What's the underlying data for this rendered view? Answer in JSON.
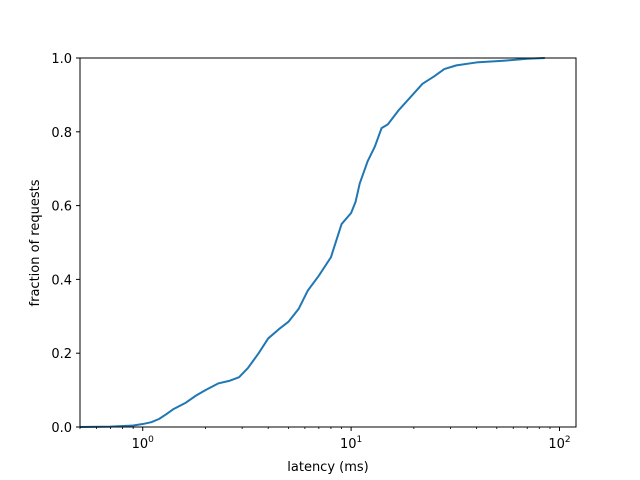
{
  "chart_data": {
    "type": "line",
    "title": "",
    "xlabel": "latency (ms)",
    "ylabel": "fraction of requests",
    "xscale": "log",
    "xlim": [
      0.5,
      120
    ],
    "ylim": [
      0.0,
      1.0
    ],
    "grid": false,
    "legend": "none",
    "line_color": "#1f77b4",
    "xticks": [
      {
        "value": 1,
        "base": "10",
        "exp": "0"
      },
      {
        "value": 10,
        "base": "10",
        "exp": "1"
      },
      {
        "value": 100,
        "base": "10",
        "exp": "2"
      }
    ],
    "yticks": [
      {
        "value": 0.0,
        "label": "0.0"
      },
      {
        "value": 0.2,
        "label": "0.2"
      },
      {
        "value": 0.4,
        "label": "0.4"
      },
      {
        "value": 0.6,
        "label": "0.6"
      },
      {
        "value": 0.8,
        "label": "0.8"
      },
      {
        "value": 1.0,
        "label": "1.0"
      }
    ],
    "series": [
      {
        "x": [
          0.5,
          0.7,
          0.9,
          1.0,
          1.1,
          1.2,
          1.3,
          1.4,
          1.6,
          1.8,
          2.0,
          2.3,
          2.6,
          2.9,
          3.2,
          3.6,
          4.0,
          4.5,
          5.0,
          5.6,
          6.2,
          7.0,
          8.0,
          9.0,
          10.0,
          10.5,
          11.0,
          12.0,
          13.0,
          14.0,
          15.0,
          17.0,
          19.0,
          22.0,
          25.0,
          28.0,
          32.0,
          40.0,
          55.0,
          70.0,
          85.0
        ],
        "y": [
          0.0,
          0.001,
          0.004,
          0.008,
          0.013,
          0.022,
          0.035,
          0.048,
          0.065,
          0.085,
          0.1,
          0.118,
          0.125,
          0.135,
          0.16,
          0.2,
          0.24,
          0.265,
          0.285,
          0.32,
          0.37,
          0.41,
          0.46,
          0.55,
          0.58,
          0.61,
          0.66,
          0.72,
          0.76,
          0.81,
          0.82,
          0.86,
          0.89,
          0.93,
          0.95,
          0.97,
          0.98,
          0.988,
          0.993,
          0.998,
          1.0
        ]
      }
    ]
  }
}
